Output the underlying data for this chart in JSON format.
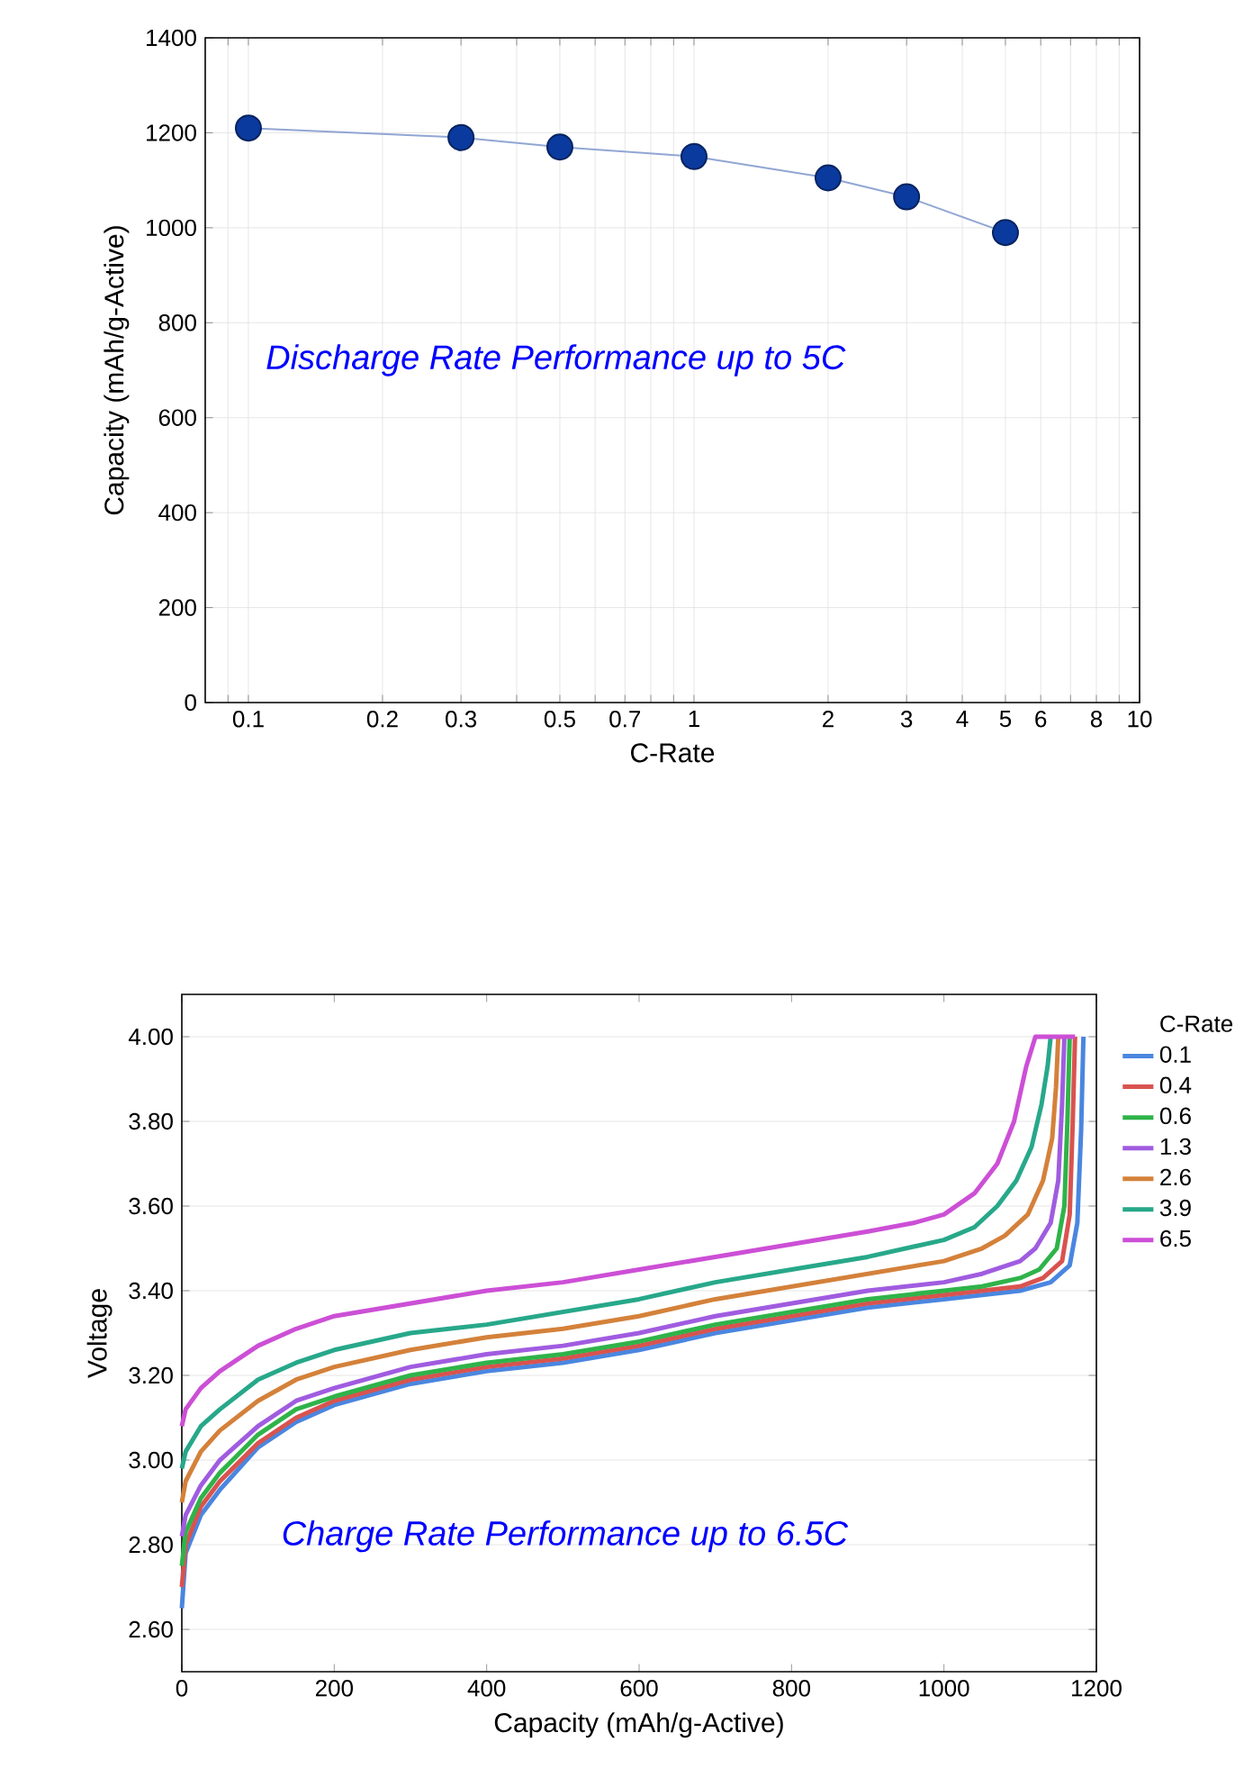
{
  "chart_data": [
    {
      "type": "line",
      "xlabel": "C-Rate",
      "ylabel": "Capacity (mAh/g-Active)",
      "annotations": [
        "Discharge Rate Performance up to 5C"
      ],
      "log": "x",
      "grid": true,
      "marker": "circle",
      "line_style": "solid",
      "x": [
        0.1,
        0.3,
        0.5,
        1,
        2,
        3,
        5
      ],
      "values": [
        1210,
        1190,
        1170,
        1150,
        1105,
        1065,
        990
      ],
      "color": "#0b3a9e",
      "xlim": [
        0.08,
        10
      ],
      "ylim": [
        0,
        1400
      ],
      "xticks": [
        {
          "value": 0.09,
          "label": null
        },
        0.1,
        0.2,
        0.3,
        {
          "value": 0.4,
          "label": null
        },
        0.5,
        {
          "value": 0.6,
          "label": null
        },
        0.7,
        {
          "value": 0.8,
          "label": null
        },
        {
          "value": 0.9,
          "label": null
        },
        1,
        2,
        3,
        4,
        5,
        6,
        {
          "value": 7,
          "label": null
        },
        8,
        {
          "value": 9,
          "label": null
        },
        10
      ],
      "yticks": [
        0,
        200,
        400,
        600,
        800,
        1000,
        1200,
        1400
      ]
    },
    {
      "type": "line",
      "xlabel": "Capacity (mAh/g-Active)",
      "ylabel": "Voltage",
      "legend_title": "C-Rate",
      "annotations": [
        "Charge Rate Performance up to 6.5C"
      ],
      "grid": "y",
      "legend": "right",
      "line_style": "solid",
      "xlim": [
        0,
        1200
      ],
      "ylim": [
        2.5,
        4.1
      ],
      "xticks": [
        0,
        200,
        400,
        600,
        800,
        1000,
        1200
      ],
      "yticks": [
        {
          "value": 2.6,
          "label": "2.60"
        },
        {
          "value": 2.8,
          "label": "2.80"
        },
        {
          "value": 3.0,
          "label": "3.00"
        },
        {
          "value": 3.2,
          "label": "3.20"
        },
        {
          "value": 3.4,
          "label": "3.40"
        },
        {
          "value": 3.6,
          "label": "3.60"
        },
        {
          "value": 3.8,
          "label": "3.80"
        },
        {
          "value": 4.0,
          "label": "4.00"
        }
      ],
      "series": [
        {
          "name": "0.1",
          "color": "#4a86e0",
          "x": [
            0,
            5,
            25,
            50,
            100,
            150,
            200,
            300,
            400,
            500,
            600,
            700,
            800,
            900,
            1000,
            1050,
            1100,
            1140,
            1165,
            1175,
            1180,
            1183
          ],
          "values": [
            2.65,
            2.78,
            2.87,
            2.93,
            3.03,
            3.09,
            3.13,
            3.18,
            3.21,
            3.23,
            3.26,
            3.3,
            3.33,
            3.36,
            3.38,
            3.39,
            3.4,
            3.42,
            3.46,
            3.56,
            3.78,
            4.0
          ]
        },
        {
          "name": "0.4",
          "color": "#d9534f",
          "x": [
            0,
            5,
            25,
            50,
            100,
            150,
            200,
            300,
            400,
            500,
            600,
            700,
            800,
            900,
            1000,
            1050,
            1100,
            1130,
            1155,
            1165,
            1169,
            1172
          ],
          "values": [
            2.7,
            2.8,
            2.89,
            2.95,
            3.04,
            3.1,
            3.14,
            3.19,
            3.22,
            3.24,
            3.27,
            3.31,
            3.34,
            3.37,
            3.39,
            3.4,
            3.41,
            3.43,
            3.47,
            3.58,
            3.8,
            4.0
          ]
        },
        {
          "name": "0.6",
          "color": "#2fb34a",
          "x": [
            0,
            5,
            25,
            50,
            100,
            150,
            200,
            300,
            400,
            500,
            600,
            700,
            800,
            900,
            1000,
            1050,
            1100,
            1125,
            1148,
            1158,
            1162,
            1165
          ],
          "values": [
            2.75,
            2.83,
            2.91,
            2.97,
            3.06,
            3.12,
            3.15,
            3.2,
            3.23,
            3.25,
            3.28,
            3.32,
            3.35,
            3.38,
            3.4,
            3.41,
            3.43,
            3.45,
            3.5,
            3.6,
            3.8,
            4.0
          ]
        },
        {
          "name": "1.3",
          "color": "#a05ce0",
          "x": [
            0,
            5,
            25,
            50,
            100,
            150,
            200,
            300,
            400,
            500,
            600,
            700,
            800,
            900,
            1000,
            1050,
            1100,
            1120,
            1140,
            1150,
            1155,
            1158
          ],
          "values": [
            2.82,
            2.87,
            2.94,
            3.0,
            3.08,
            3.14,
            3.17,
            3.22,
            3.25,
            3.27,
            3.3,
            3.34,
            3.37,
            3.4,
            3.42,
            3.44,
            3.47,
            3.5,
            3.56,
            3.66,
            3.84,
            4.0
          ]
        },
        {
          "name": "2.6",
          "color": "#d4813a",
          "x": [
            0,
            5,
            25,
            50,
            100,
            150,
            200,
            300,
            400,
            500,
            600,
            700,
            800,
            900,
            1000,
            1050,
            1080,
            1110,
            1130,
            1142,
            1147,
            1150
          ],
          "values": [
            2.9,
            2.95,
            3.02,
            3.07,
            3.14,
            3.19,
            3.22,
            3.26,
            3.29,
            3.31,
            3.34,
            3.38,
            3.41,
            3.44,
            3.47,
            3.5,
            3.53,
            3.58,
            3.66,
            3.76,
            3.88,
            4.0
          ]
        },
        {
          "name": "3.9",
          "color": "#27a88a",
          "x": [
            0,
            5,
            25,
            50,
            100,
            150,
            200,
            300,
            400,
            500,
            600,
            700,
            800,
            900,
            1000,
            1040,
            1070,
            1095,
            1115,
            1128,
            1136,
            1140
          ],
          "values": [
            2.98,
            3.02,
            3.08,
            3.12,
            3.19,
            3.23,
            3.26,
            3.3,
            3.32,
            3.35,
            3.38,
            3.42,
            3.45,
            3.48,
            3.52,
            3.55,
            3.6,
            3.66,
            3.74,
            3.84,
            3.93,
            4.0
          ]
        },
        {
          "name": "6.5",
          "color": "#cc4fd6",
          "x": [
            0,
            5,
            25,
            50,
            100,
            150,
            200,
            300,
            400,
            500,
            600,
            700,
            800,
            900,
            960,
            1000,
            1040,
            1070,
            1092,
            1108,
            1120,
            1172
          ],
          "values": [
            3.08,
            3.12,
            3.17,
            3.21,
            3.27,
            3.31,
            3.34,
            3.37,
            3.4,
            3.42,
            3.45,
            3.48,
            3.51,
            3.54,
            3.56,
            3.58,
            3.63,
            3.7,
            3.8,
            3.93,
            4.0,
            4.0
          ]
        }
      ]
    }
  ]
}
